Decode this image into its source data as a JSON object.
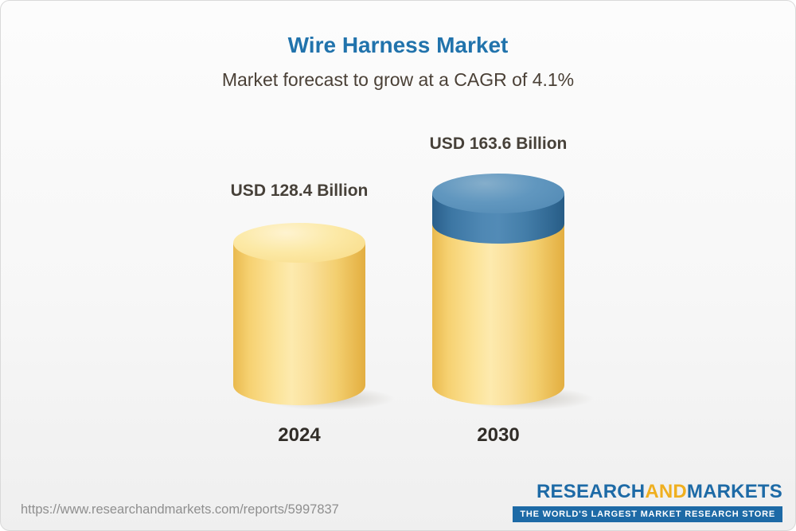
{
  "chart_data": {
    "type": "bar",
    "title": "Wire Harness Market",
    "subtitle": "Market forecast to grow at a CAGR of 4.1%",
    "categories": [
      "2024",
      "2030"
    ],
    "values": [
      128.4,
      163.6
    ],
    "unit": "USD Billion",
    "cagr_percent": 4.1,
    "bars": [
      {
        "category": "2024",
        "value": 128.4,
        "label": "USD 128.4 Billion",
        "color": "#f8d97e"
      },
      {
        "category": "2030",
        "value": 163.6,
        "label": "USD 163.6 Billion",
        "color_base": "#f8d97e",
        "color_growth": "#3f7ba7"
      }
    ],
    "legend": "none",
    "grid": false,
    "ylim": [
      0,
      180
    ]
  },
  "footer": {
    "url": "https://www.researchandmarkets.com/reports/5997837",
    "logo": {
      "part1": "RESEARCH",
      "part2": "AND",
      "part3": "MARKETS",
      "tagline": "THE WORLD'S LARGEST MARKET RESEARCH STORE"
    }
  },
  "colors": {
    "title": "#2173ac",
    "subtitle": "#4a4036",
    "value_label": "#474139",
    "year_label": "#312d28",
    "url_text": "#8f8f8f",
    "logo_blue": "#1d6aa6",
    "logo_gold": "#efaf1f",
    "bar_yellow": "#f8d97e",
    "bar_blue": "#3f7ba7"
  }
}
